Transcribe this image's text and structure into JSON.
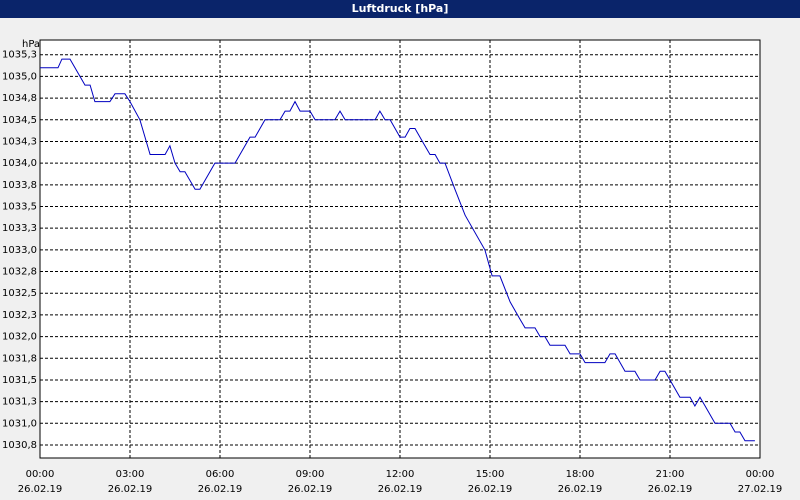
{
  "chart_data": {
    "type": "line",
    "title": "Luftdruck [hPa]",
    "y_unit": "hPa",
    "x": [
      0,
      0.6,
      0.73,
      1.0,
      1.5,
      1.67,
      1.83,
      2.33,
      2.5,
      2.83,
      3.0,
      3.33,
      3.67,
      4.17,
      4.33,
      4.5,
      4.67,
      4.83,
      5.17,
      5.33,
      5.83,
      6.5,
      7.0,
      7.17,
      7.5,
      8.0,
      8.17,
      8.33,
      8.5,
      8.67,
      9.0,
      9.17,
      9.83,
      10.0,
      10.17,
      11.17,
      11.33,
      11.5,
      11.67,
      12.0,
      12.17,
      12.33,
      12.5,
      12.83,
      13.0,
      13.17,
      13.33,
      13.5,
      13.83,
      14.17,
      14.83,
      15.07,
      15.33,
      15.67,
      16.0,
      16.17,
      16.5,
      16.67,
      16.83,
      17.0,
      17.5,
      17.67,
      18.0,
      18.17,
      18.83,
      19.0,
      19.17,
      19.5,
      19.83,
      20.0,
      20.5,
      20.67,
      20.83,
      21.0,
      21.33,
      21.67,
      21.83,
      22.0,
      22.17,
      22.5,
      23.0,
      23.17,
      23.33,
      23.5,
      23.83
    ],
    "series": [
      {
        "name": "Luftdruck",
        "color": "#0000c0",
        "values": [
          1035.1,
          1035.1,
          1035.2,
          1035.2,
          1034.9,
          1034.9,
          1034.71,
          1034.71,
          1034.8,
          1034.8,
          1034.71,
          1034.5,
          1034.1,
          1034.1,
          1034.2,
          1034.0,
          1033.9,
          1033.9,
          1033.7,
          1033.7,
          1034.0,
          1034.0,
          1034.3,
          1034.3,
          1034.5,
          1034.5,
          1034.6,
          1034.6,
          1034.71,
          1034.6,
          1034.6,
          1034.5,
          1034.5,
          1034.6,
          1034.5,
          1034.5,
          1034.6,
          1034.5,
          1034.5,
          1034.3,
          1034.3,
          1034.4,
          1034.4,
          1034.2,
          1034.1,
          1034.1,
          1034.0,
          1034.0,
          1033.7,
          1033.4,
          1033.0,
          1032.7,
          1032.7,
          1032.4,
          1032.2,
          1032.1,
          1032.1,
          1032.0,
          1032.0,
          1031.9,
          1031.9,
          1031.8,
          1031.8,
          1031.7,
          1031.7,
          1031.8,
          1031.8,
          1031.6,
          1031.6,
          1031.5,
          1031.5,
          1031.6,
          1031.6,
          1031.5,
          1031.3,
          1031.3,
          1031.2,
          1031.3,
          1031.2,
          1031.0,
          1031.0,
          1030.9,
          1030.9,
          1030.8,
          1030.8
        ]
      }
    ],
    "xlim": [
      0,
      24
    ],
    "xticks": [
      {
        "value": 0,
        "label": "00:00",
        "date": "26.02.19"
      },
      {
        "value": 3,
        "label": "03:00",
        "date": "26.02.19"
      },
      {
        "value": 6,
        "label": "06:00",
        "date": "26.02.19"
      },
      {
        "value": 9,
        "label": "09:00",
        "date": "26.02.19"
      },
      {
        "value": 12,
        "label": "12:00",
        "date": "26.02.19"
      },
      {
        "value": 15,
        "label": "15:00",
        "date": "26.02.19"
      },
      {
        "value": 18,
        "label": "18:00",
        "date": "26.02.19"
      },
      {
        "value": 21,
        "label": "21:00",
        "date": "26.02.19"
      },
      {
        "value": 24,
        "label": "00:00",
        "date": "27.02.19"
      }
    ],
    "ylim": [
      1030.6,
      1035.42
    ],
    "yticks": [
      {
        "value": 1030.75,
        "label": "1030,8"
      },
      {
        "value": 1031.0,
        "label": "1031,0"
      },
      {
        "value": 1031.25,
        "label": "1031,3"
      },
      {
        "value": 1031.5,
        "label": "1031,5"
      },
      {
        "value": 1031.75,
        "label": "1031,8"
      },
      {
        "value": 1032.0,
        "label": "1032,0"
      },
      {
        "value": 1032.25,
        "label": "1032,3"
      },
      {
        "value": 1032.5,
        "label": "1032,5"
      },
      {
        "value": 1032.75,
        "label": "1032,8"
      },
      {
        "value": 1033.0,
        "label": "1033,0"
      },
      {
        "value": 1033.25,
        "label": "1033,3"
      },
      {
        "value": 1033.5,
        "label": "1033,5"
      },
      {
        "value": 1033.75,
        "label": "1033,8"
      },
      {
        "value": 1034.0,
        "label": "1034,0"
      },
      {
        "value": 1034.25,
        "label": "1034,3"
      },
      {
        "value": 1034.5,
        "label": "1034,5"
      },
      {
        "value": 1034.75,
        "label": "1034,8"
      },
      {
        "value": 1035.0,
        "label": "1035,0"
      },
      {
        "value": 1035.25,
        "label": "1035,3"
      }
    ],
    "grid": true
  }
}
